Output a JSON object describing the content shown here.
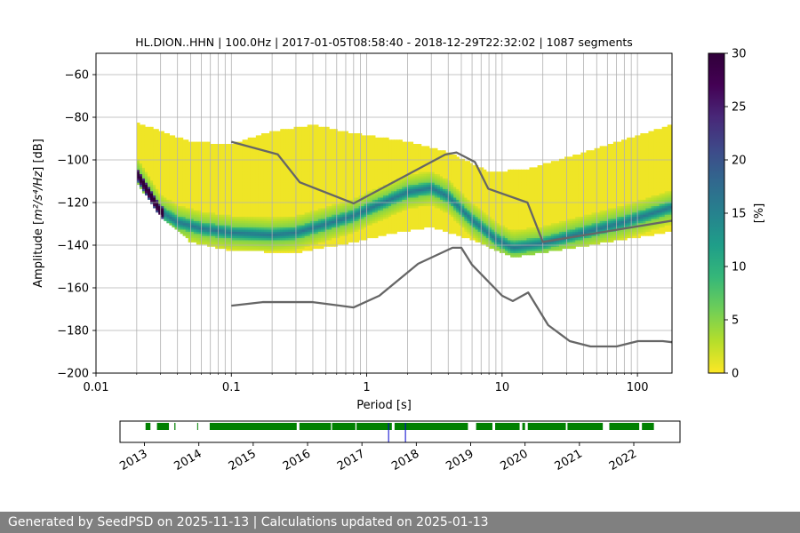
{
  "chart_data": [
    {
      "type": "heatmap",
      "title": "HL.DION..HHN | 100.0Hz | 2017-01-05T08:58:40 - 2018-12-29T22:32:02 | 1087 segments",
      "xlabel": "Period [s]",
      "ylabel_prefix": "Amplitude [",
      "ylabel_math": "m²/s⁴/Hz",
      "ylabel_suffix": "] [dB]",
      "x_scale": "log",
      "xlim": [
        0.01,
        180
      ],
      "ylim": [
        -200,
        -50
      ],
      "x_ticks": [
        {
          "value": 0.01,
          "label": "0.01"
        },
        {
          "value": 0.1,
          "label": "0.1"
        },
        {
          "value": 1,
          "label": "1"
        },
        {
          "value": 10,
          "label": "10"
        },
        {
          "value": 100,
          "label": "100"
        }
      ],
      "y_ticks": [
        {
          "value": -60,
          "label": "−60"
        },
        {
          "value": -80,
          "label": "−80"
        },
        {
          "value": -100,
          "label": "−100"
        },
        {
          "value": -120,
          "label": "−120"
        },
        {
          "value": -140,
          "label": "−140"
        },
        {
          "value": -160,
          "label": "−160"
        },
        {
          "value": -180,
          "label": "−180"
        },
        {
          "value": -200,
          "label": "−200"
        }
      ],
      "grid": true,
      "colormap": "viridis_r",
      "colorbar": {
        "label": "[%]",
        "range": [
          0,
          30
        ],
        "ticks": [
          {
            "value": 0,
            "label": "0"
          },
          {
            "value": 5,
            "label": "5"
          },
          {
            "value": 10,
            "label": "10"
          },
          {
            "value": 15,
            "label": "15"
          },
          {
            "value": 20,
            "label": "20"
          },
          {
            "value": 25,
            "label": "25"
          },
          {
            "value": 30,
            "label": "30"
          }
        ]
      },
      "psd_mode": [
        {
          "x": 0.02,
          "y": -106
        },
        {
          "x": 0.025,
          "y": -116
        },
        {
          "x": 0.03,
          "y": -124
        },
        {
          "x": 0.04,
          "y": -129
        },
        {
          "x": 0.06,
          "y": -132
        },
        {
          "x": 0.1,
          "y": -134
        },
        {
          "x": 0.2,
          "y": -135
        },
        {
          "x": 0.3,
          "y": -134
        },
        {
          "x": 0.5,
          "y": -130
        },
        {
          "x": 0.8,
          "y": -126
        },
        {
          "x": 1.2,
          "y": -121
        },
        {
          "x": 2,
          "y": -115
        },
        {
          "x": 3,
          "y": -113
        },
        {
          "x": 4,
          "y": -117
        },
        {
          "x": 6,
          "y": -128
        },
        {
          "x": 9,
          "y": -137
        },
        {
          "x": 12,
          "y": -141
        },
        {
          "x": 20,
          "y": -139
        },
        {
          "x": 40,
          "y": -134
        },
        {
          "x": 80,
          "y": -129
        },
        {
          "x": 180,
          "y": -122
        }
      ],
      "psd_spread_upper": [
        {
          "x": 0.02,
          "y": -83
        },
        {
          "x": 0.05,
          "y": -92
        },
        {
          "x": 0.1,
          "y": -93
        },
        {
          "x": 0.2,
          "y": -87
        },
        {
          "x": 0.4,
          "y": -84
        },
        {
          "x": 0.8,
          "y": -88
        },
        {
          "x": 2,
          "y": -92
        },
        {
          "x": 4,
          "y": -97
        },
        {
          "x": 8,
          "y": -106
        },
        {
          "x": 15,
          "y": -105
        },
        {
          "x": 40,
          "y": -97
        },
        {
          "x": 100,
          "y": -89
        },
        {
          "x": 180,
          "y": -84
        }
      ],
      "psd_spread_lower": [
        {
          "x": 0.02,
          "y": -110
        },
        {
          "x": 0.03,
          "y": -126
        },
        {
          "x": 0.05,
          "y": -138
        },
        {
          "x": 0.1,
          "y": -142
        },
        {
          "x": 0.3,
          "y": -143
        },
        {
          "x": 0.8,
          "y": -138
        },
        {
          "x": 1.5,
          "y": -134
        },
        {
          "x": 3,
          "y": -131
        },
        {
          "x": 6,
          "y": -137
        },
        {
          "x": 12,
          "y": -145
        },
        {
          "x": 20,
          "y": -143
        },
        {
          "x": 60,
          "y": -138
        },
        {
          "x": 180,
          "y": -133
        }
      ],
      "series": [
        {
          "name": "",
          "color": "#666666",
          "points": [
            {
              "x": 0.1,
              "y": -91.5
            },
            {
              "x": 0.22,
              "y": -97.4
            },
            {
              "x": 0.32,
              "y": -110.5
            },
            {
              "x": 0.8,
              "y": -120.4
            },
            {
              "x": 3.8,
              "y": -97.5
            },
            {
              "x": 4.6,
              "y": -96.5
            },
            {
              "x": 6.3,
              "y": -101
            },
            {
              "x": 7.9,
              "y": -113.5
            },
            {
              "x": 15.4,
              "y": -120
            },
            {
              "x": 20,
              "y": -138.5
            },
            {
              "x": 180,
              "y": -128.5
            }
          ]
        },
        {
          "name": "",
          "color": "#666666",
          "points": [
            {
              "x": 0.1,
              "y": -168.4
            },
            {
              "x": 0.17,
              "y": -166.7
            },
            {
              "x": 0.4,
              "y": -166.7
            },
            {
              "x": 0.8,
              "y": -169.2
            },
            {
              "x": 1.24,
              "y": -163.7
            },
            {
              "x": 2.4,
              "y": -148.7
            },
            {
              "x": 4.3,
              "y": -141.2
            },
            {
              "x": 5.0,
              "y": -141.2
            },
            {
              "x": 6.0,
              "y": -149.2
            },
            {
              "x": 10,
              "y": -163.7
            },
            {
              "x": 12,
              "y": -166.2
            },
            {
              "x": 15.6,
              "y": -162.2
            },
            {
              "x": 21.9,
              "y": -177.5
            },
            {
              "x": 31.6,
              "y": -185
            },
            {
              "x": 45,
              "y": -187.5
            },
            {
              "x": 70,
              "y": -187.5
            },
            {
              "x": 101,
              "y": -185
            },
            {
              "x": 154,
              "y": -185
            },
            {
              "x": 180,
              "y": -185.5
            }
          ]
        }
      ]
    },
    {
      "type": "timeline",
      "x_range": [
        2012.55,
        2022.85
      ],
      "tick_labels": [
        {
          "value": 2013,
          "label": "2013"
        },
        {
          "value": 2014,
          "label": "2014"
        },
        {
          "value": 2015,
          "label": "2015"
        },
        {
          "value": 2016,
          "label": "2016"
        },
        {
          "value": 2017,
          "label": "2017"
        },
        {
          "value": 2018,
          "label": "2018"
        },
        {
          "value": 2019,
          "label": "2019"
        },
        {
          "value": 2020,
          "label": "2020"
        },
        {
          "value": 2021,
          "label": "2021"
        },
        {
          "value": 2022,
          "label": "2022"
        }
      ],
      "data_color": "#008000",
      "marker_color": "#0000cd",
      "available_spans": [
        [
          2013.02,
          2013.11
        ],
        [
          2013.23,
          2013.45
        ],
        [
          2013.55,
          2013.57
        ],
        [
          2013.97,
          2013.98
        ],
        [
          2014.2,
          2015.8
        ],
        [
          2015.85,
          2016.43
        ],
        [
          2016.45,
          2016.88
        ],
        [
          2016.9,
          2017.55
        ],
        [
          2017.6,
          2018.95
        ],
        [
          2019.1,
          2019.4
        ],
        [
          2019.45,
          2019.9
        ],
        [
          2019.95,
          2020.0
        ],
        [
          2020.05,
          2020.75
        ],
        [
          2020.78,
          2021.43
        ],
        [
          2021.55,
          2022.1
        ],
        [
          2022.15,
          2022.37
        ]
      ],
      "markers": [
        2017.49,
        2017.8
      ]
    }
  ],
  "footer": {
    "text": "Generated by SeedPSD on 2025-11-13 | Calculations updated on 2025-01-13"
  }
}
